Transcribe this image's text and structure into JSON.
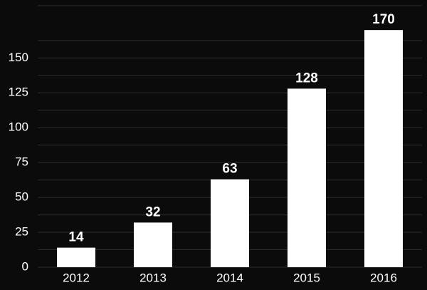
{
  "chart_data": {
    "type": "bar",
    "categories": [
      "2012",
      "2013",
      "2014",
      "2015",
      "2016"
    ],
    "values": [
      14,
      32,
      63,
      128,
      170
    ],
    "color": "#ffffff",
    "ylim": [
      0,
      190
    ],
    "yticks": [
      0,
      25,
      50,
      75,
      100,
      125,
      150
    ],
    "yminorticks": [
      12.5,
      37.5,
      62.5,
      87.5,
      112.5,
      137.5,
      162.5,
      187.5
    ],
    "grid": true
  }
}
